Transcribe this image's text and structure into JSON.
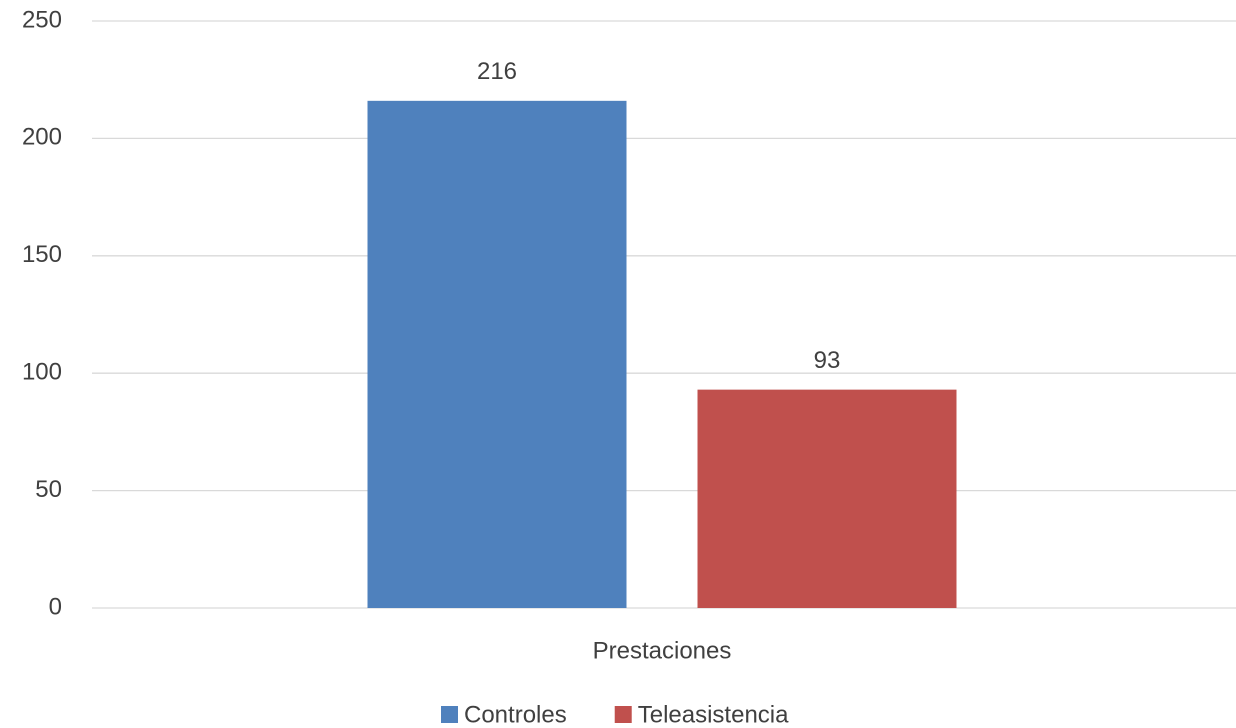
{
  "chart_data": {
    "type": "bar",
    "categories": [
      "Prestaciones"
    ],
    "series": [
      {
        "name": "Controles",
        "color": "#4f81bd",
        "values": [
          216
        ]
      },
      {
        "name": "Teleasistencia",
        "color": "#c0504d",
        "values": [
          93
        ]
      }
    ],
    "ylim": [
      0,
      250
    ],
    "yticks": [
      0,
      50,
      100,
      150,
      200,
      250
    ],
    "grid": true,
    "data_labels": true,
    "legend": "bottom"
  }
}
